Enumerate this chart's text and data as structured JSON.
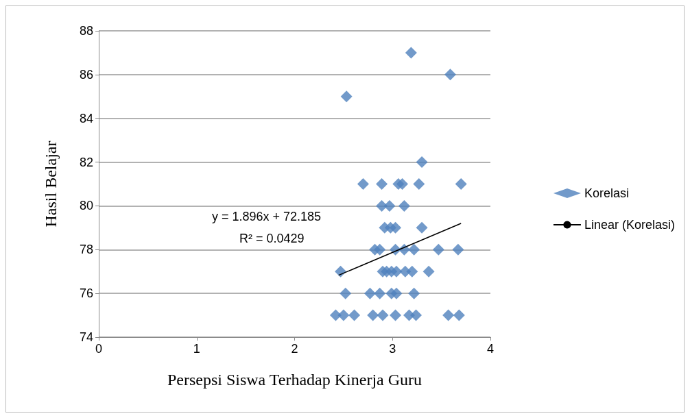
{
  "chart_data": {
    "type": "scatter",
    "xlabel": "Persepsi Siswa Terhadap Kinerja Guru",
    "ylabel": "Hasil Belajar",
    "xlim": [
      0,
      4
    ],
    "xticks": [
      0,
      1,
      2,
      3,
      4
    ],
    "ylim": [
      74,
      88
    ],
    "yticks": [
      74,
      76,
      78,
      80,
      82,
      84,
      86,
      88
    ],
    "grid": "y",
    "legend": "right",
    "marker": "diamond",
    "annotations": [
      "y = 1.896x + 72.185",
      "R² = 0.0429"
    ],
    "series": [
      {
        "name": "Korelasi",
        "type": "scatter",
        "color": "#4f81bd",
        "x": [
          3.19,
          3.59,
          2.53,
          3.3,
          2.7,
          2.89,
          3.06,
          3.1,
          3.27,
          3.7,
          2.89,
          2.97,
          3.12,
          2.92,
          2.98,
          3.03,
          3.3,
          2.82,
          2.87,
          3.03,
          3.12,
          3.22,
          3.47,
          3.67,
          2.47,
          2.9,
          2.94,
          2.99,
          3.04,
          3.1,
          3.13,
          3.2,
          3.37,
          2.52,
          2.77,
          2.87,
          2.99,
          3.04,
          3.22,
          2.42,
          2.5,
          2.61,
          2.8,
          2.9,
          3.03,
          3.17,
          3.24,
          3.57,
          3.68
        ],
        "values": [
          87,
          86,
          85,
          82,
          81,
          81,
          81,
          81,
          81,
          81,
          80,
          80,
          80,
          79,
          79,
          79,
          79,
          78,
          78,
          78,
          78,
          78,
          78,
          78,
          77,
          77,
          77,
          77,
          77,
          null,
          77,
          77,
          77,
          76,
          76,
          76,
          76,
          76,
          76,
          75,
          75,
          75,
          75,
          75,
          75,
          75,
          75,
          75,
          75
        ]
      },
      {
        "name": "Linear (Korelasi)",
        "type": "line",
        "color": "#000000",
        "marker": "none",
        "line_style": "solid",
        "x": [
          2.45,
          3.7
        ],
        "values": [
          76.83,
          79.2
        ]
      }
    ]
  }
}
